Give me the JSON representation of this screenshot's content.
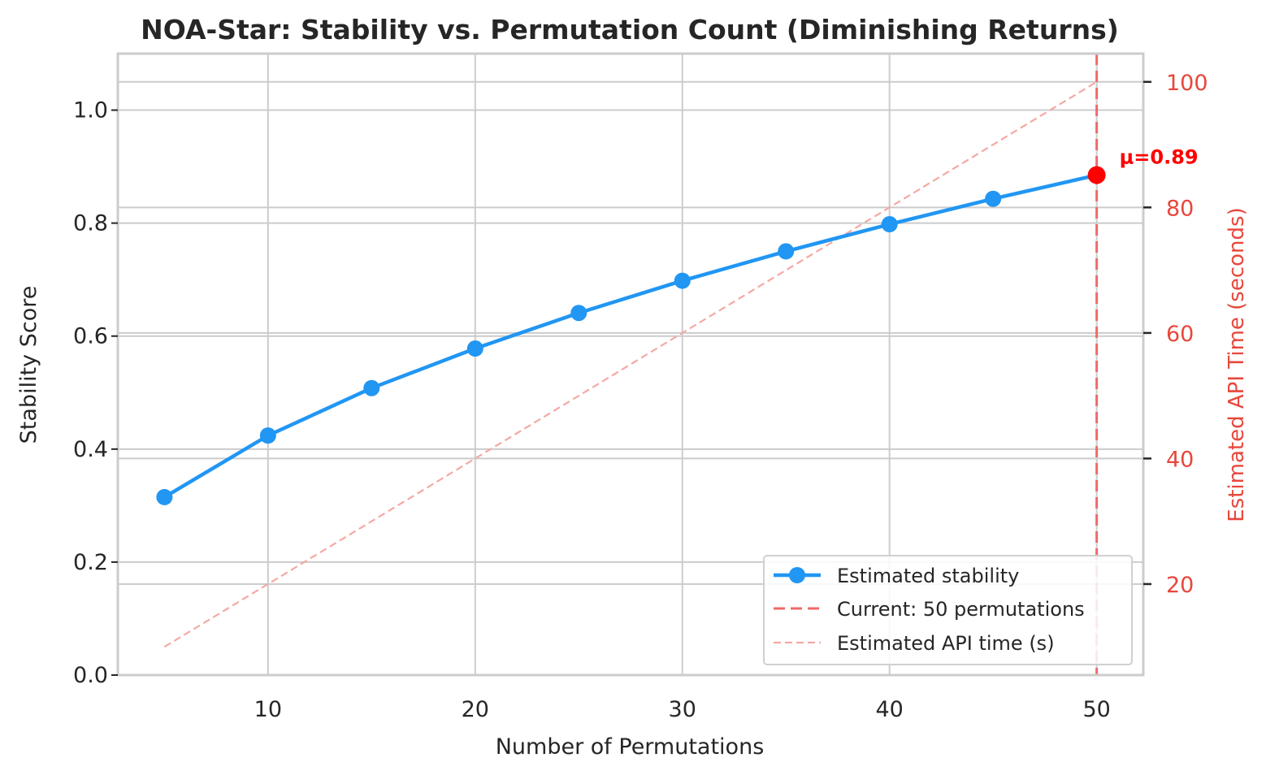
{
  "chart_data": {
    "type": "line",
    "title": "NOA-Star: Stability vs. Permutation Count (Diminishing Returns)",
    "xlabel": "Number of Permutations",
    "ylabel": "Stability Score",
    "y2label": "Estimated API Time (seconds)",
    "xlim": [
      2.75,
      52.25
    ],
    "ylim": [
      0,
      1.1
    ],
    "y2lim": [
      5.5,
      104.5
    ],
    "xticks": [
      10,
      20,
      30,
      40,
      50
    ],
    "xtick_labels": [
      "10",
      "20",
      "30",
      "40",
      "50"
    ],
    "yticks": [
      0,
      0.2,
      0.4,
      0.6,
      0.8,
      1.0
    ],
    "ytick_labels": [
      "0.0",
      "0.2",
      "0.4",
      "0.6",
      "0.8",
      "1.0"
    ],
    "y2ticks": [
      20,
      40,
      60,
      80,
      100
    ],
    "y2tick_labels": [
      "20",
      "40",
      "60",
      "80",
      "100"
    ],
    "grid": true,
    "legend_position": "lower-right",
    "x": [
      5,
      10,
      15,
      20,
      25,
      30,
      35,
      40,
      45,
      50
    ],
    "series": [
      {
        "name": "Estimated stability",
        "axis": "left",
        "style": "solid-markers",
        "color": "#2196f3",
        "values": [
          0.315,
          0.424,
          0.508,
          0.578,
          0.641,
          0.698,
          0.75,
          0.798,
          0.843,
          0.885
        ]
      },
      {
        "name": "Estimated API time (s)",
        "axis": "right",
        "style": "dashed-thin",
        "color": "#f4a9a3",
        "values": [
          10,
          20,
          30,
          40,
          50,
          60,
          70,
          80,
          90,
          100
        ]
      }
    ],
    "vline": {
      "name": "Current: 50 permutations",
      "x": 50,
      "color": "#ef6a6a"
    },
    "highlight_point": {
      "x": 50,
      "y": 0.885,
      "color": "#ff0000",
      "label": "μ=0.89"
    },
    "colors": {
      "axis_right": "#e8473c",
      "grid": "#cccccc",
      "spine": "#cccccc"
    }
  }
}
